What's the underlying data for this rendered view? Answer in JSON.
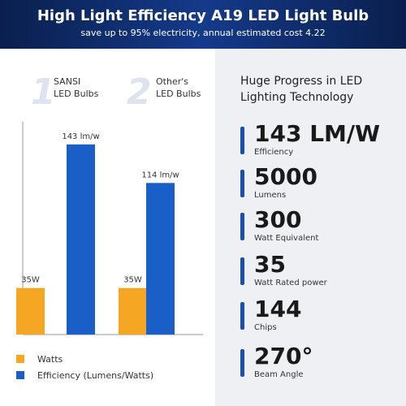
{
  "header": {
    "title": "High Light Efficiency A19 LED Light Bulb",
    "subtitle": "save up to 95% electricity, annual estimated cost 4.22"
  },
  "chart_data": {
    "type": "bar",
    "category_numbers": [
      "1",
      "2"
    ],
    "categories": [
      "SANSI LED Bulbs",
      "Other's LED Bulbs"
    ],
    "series": [
      {
        "name": "Watts",
        "color": "#f5a623",
        "values": [
          35,
          35
        ],
        "value_labels": [
          "35W",
          "35W"
        ]
      },
      {
        "name": "Efficiency (Lumens/Watts)",
        "color": "#1a5fc8",
        "values": [
          143,
          114
        ],
        "value_labels": [
          "143 lm/w",
          "114 lm/w"
        ]
      }
    ],
    "ylim": [
      0,
      160
    ]
  },
  "specs": {
    "heading": "Huge Progress in LED Lighting Technology",
    "items": [
      {
        "value": "143 LM/W",
        "label": "Efficiency"
      },
      {
        "value": "5000",
        "label": "Lumens"
      },
      {
        "value": "300",
        "label": "Watt Equivalent"
      },
      {
        "value": "35",
        "label": "Watt Rated power"
      },
      {
        "value": "144",
        "label": "Chips"
      },
      {
        "value": "270°",
        "label": "Beam Angle"
      }
    ]
  }
}
